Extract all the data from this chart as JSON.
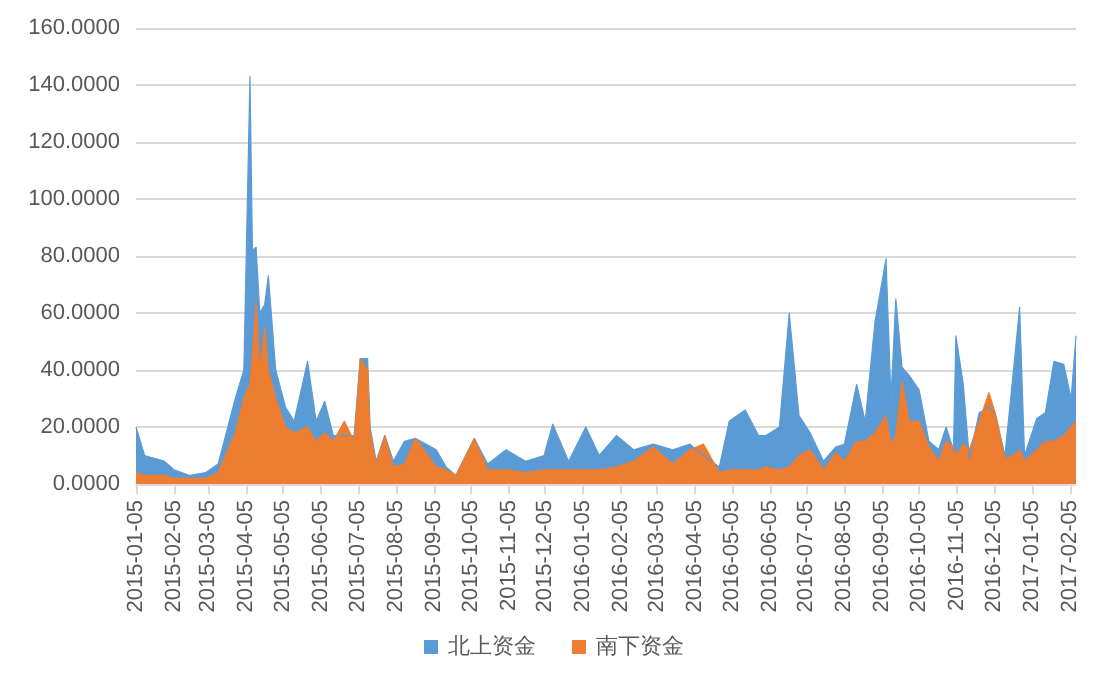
{
  "chart_data": {
    "type": "area",
    "x": [
      "2015-01-05",
      "2015-01-12",
      "2015-01-20",
      "2015-01-28",
      "2015-02-05",
      "2015-02-18",
      "2015-03-03",
      "2015-03-13",
      "2015-03-27",
      "2015-04-03",
      "2015-04-08",
      "2015-04-10",
      "2015-04-13",
      "2015-04-16",
      "2015-04-20",
      "2015-04-23",
      "2015-04-29",
      "2015-05-07",
      "2015-05-14",
      "2015-05-25",
      "2015-06-01",
      "2015-06-08",
      "2015-06-15",
      "2015-06-24",
      "2015-07-02",
      "2015-07-07",
      "2015-07-13",
      "2015-07-15",
      "2015-07-20",
      "2015-07-27",
      "2015-08-03",
      "2015-08-12",
      "2015-08-21",
      "2015-09-07",
      "2015-09-15",
      "2015-09-23",
      "2015-10-08",
      "2015-10-19",
      "2015-11-03",
      "2015-11-19",
      "2015-12-04",
      "2015-12-11",
      "2015-12-24",
      "2016-01-07",
      "2016-01-18",
      "2016-02-01",
      "2016-02-15",
      "2016-03-02",
      "2016-03-18",
      "2016-04-01",
      "2016-04-12",
      "2016-04-25",
      "2016-05-03",
      "2016-05-16",
      "2016-05-27",
      "2016-06-02",
      "2016-06-13",
      "2016-06-21",
      "2016-06-29",
      "2016-07-08",
      "2016-07-19",
      "2016-07-29",
      "2016-08-05",
      "2016-08-15",
      "2016-08-22",
      "2016-08-30",
      "2016-09-08",
      "2016-09-12",
      "2016-09-16",
      "2016-09-21",
      "2016-09-27",
      "2016-10-05",
      "2016-10-13",
      "2016-10-21",
      "2016-10-27",
      "2016-11-02",
      "2016-11-04",
      "2016-11-10",
      "2016-11-15",
      "2016-11-23",
      "2016-12-01",
      "2016-12-06",
      "2016-12-14",
      "2016-12-21",
      "2016-12-26",
      "2016-12-30",
      "2017-01-09",
      "2017-01-16",
      "2017-01-23",
      "2017-01-31",
      "2017-02-06",
      "2017-02-10"
    ],
    "series": [
      {
        "name": "北上资金",
        "color": "#5b9bd5",
        "values": [
          20,
          10,
          9,
          8,
          5,
          3,
          4,
          7,
          30,
          40,
          143,
          82,
          83,
          60,
          63,
          73,
          40,
          27,
          22,
          43,
          22,
          29,
          17,
          17,
          17,
          44,
          44,
          20,
          8,
          17,
          8,
          15,
          16,
          12,
          6,
          3,
          16,
          7,
          12,
          8,
          10,
          21,
          8,
          20,
          10,
          17,
          12,
          14,
          12,
          14,
          10,
          6,
          22,
          26,
          17,
          17,
          20,
          60,
          24,
          18,
          8,
          13,
          14,
          35,
          22,
          57,
          79,
          30,
          65,
          41,
          38,
          33,
          15,
          12,
          20,
          12,
          52,
          35,
          9,
          25,
          27,
          25,
          10,
          40,
          62,
          10,
          23,
          25,
          43,
          42,
          30,
          52
        ]
      },
      {
        "name": "南下资金",
        "color": "#ed7d31",
        "values": [
          4,
          3,
          3,
          3,
          2,
          2,
          2,
          4,
          18,
          30,
          35,
          45,
          64,
          40,
          55,
          40,
          30,
          20,
          18,
          20,
          15,
          18,
          15,
          22,
          15,
          44,
          40,
          18,
          7,
          17,
          6,
          7,
          16,
          6,
          5,
          3,
          16,
          5,
          5,
          4,
          5,
          5,
          5,
          5,
          5,
          6,
          8,
          13,
          7,
          12,
          14,
          4,
          5,
          5,
          5,
          6,
          5,
          6,
          10,
          12,
          5,
          11,
          8,
          15,
          15,
          18,
          24,
          14,
          17,
          36,
          22,
          22,
          13,
          8,
          15,
          13,
          10,
          14,
          12,
          22,
          32,
          25,
          9,
          10,
          12,
          8,
          12,
          15,
          15,
          17,
          20,
          22
        ]
      }
    ],
    "xlim": [
      "2015-01-05",
      "2017-02-10"
    ],
    "xticks": [
      "2015-01-05",
      "2015-02-05",
      "2015-03-05",
      "2015-04-05",
      "2015-05-05",
      "2015-06-05",
      "2015-07-05",
      "2015-08-05",
      "2015-09-05",
      "2015-10-05",
      "2015-11-05",
      "2015-12-05",
      "2016-01-05",
      "2016-02-05",
      "2016-03-05",
      "2016-04-05",
      "2016-05-05",
      "2016-06-05",
      "2016-07-05",
      "2016-08-05",
      "2016-09-05",
      "2016-10-05",
      "2016-11-05",
      "2016-12-05",
      "2017-01-05",
      "2017-02-05"
    ],
    "ylim": [
      0,
      160
    ],
    "yticks": [
      {
        "value": 0,
        "label": "0.0000"
      },
      {
        "value": 20,
        "label": "20.0000"
      },
      {
        "value": 40,
        "label": "40.0000"
      },
      {
        "value": 60,
        "label": "60.0000"
      },
      {
        "value": 80,
        "label": "80.0000"
      },
      {
        "value": 100,
        "label": "100.0000"
      },
      {
        "value": 120,
        "label": "120.0000"
      },
      {
        "value": 140,
        "label": "140.0000"
      },
      {
        "value": 160,
        "label": "160.0000"
      }
    ],
    "grid": "y",
    "legend": "bottom",
    "marker": "none"
  }
}
